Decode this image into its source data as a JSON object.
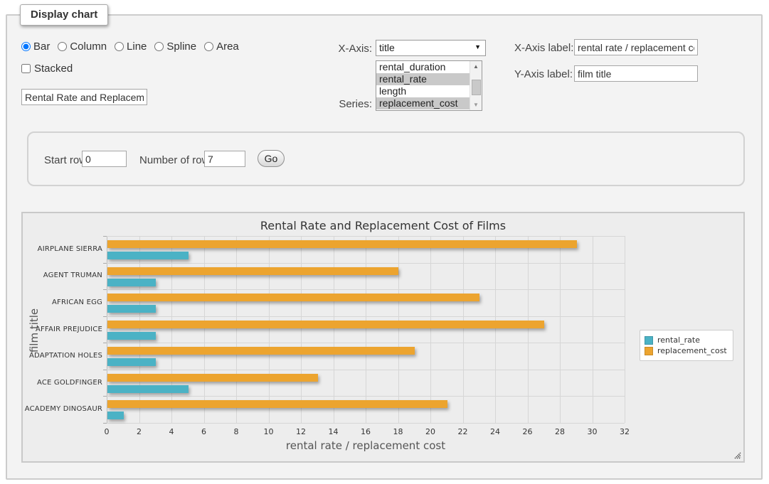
{
  "panel": {
    "legend": "Display chart"
  },
  "controls": {
    "chart_type_options": [
      {
        "label": "Bar",
        "selected": true
      },
      {
        "label": "Column",
        "selected": false
      },
      {
        "label": "Line",
        "selected": false
      },
      {
        "label": "Spline",
        "selected": false
      },
      {
        "label": "Area",
        "selected": false
      }
    ],
    "stacked": {
      "label": "Stacked",
      "checked": false
    },
    "title_input": {
      "value": "Rental Rate and Replacement Cost of Films"
    },
    "x_axis": {
      "label": "X-Axis:",
      "selected": "title"
    },
    "series_select": {
      "label": "Series:",
      "options": [
        {
          "label": "rental_duration",
          "selected": false
        },
        {
          "label": "rental_rate",
          "selected": true
        },
        {
          "label": "length",
          "selected": false
        },
        {
          "label": "replacement_cost",
          "selected": true
        }
      ]
    },
    "x_axis_label": {
      "label": "X-Axis label:",
      "value": "rental rate / replacement cost"
    },
    "y_axis_label": {
      "label": "Y-Axis label:",
      "value": "film title"
    }
  },
  "rows_panel": {
    "start_row": {
      "label": "Start row:",
      "value": "0"
    },
    "num_rows": {
      "label": "Number of rows:",
      "value": "7"
    },
    "go_label": "Go"
  },
  "chart_data": {
    "type": "bar",
    "title": "Rental Rate and Replacement Cost of Films",
    "xlabel": "rental rate / replacement cost",
    "ylabel": "film title",
    "categories": [
      "AIRPLANE SIERRA",
      "AGENT TRUMAN",
      "AFRICAN EGG",
      "AFFAIR PREJUDICE",
      "ADAPTATION HOLES",
      "ACE GOLDFINGER",
      "ACADEMY DINOSAUR"
    ],
    "series": [
      {
        "name": "rental_rate",
        "color": "#4BB2C5",
        "values": [
          4.99,
          2.99,
          2.99,
          2.99,
          2.99,
          4.99,
          0.99
        ]
      },
      {
        "name": "replacement_cost",
        "color": "#ECA42F",
        "values": [
          28.99,
          17.99,
          22.99,
          26.99,
          18.99,
          12.99,
          20.99
        ]
      }
    ],
    "xlim": [
      0,
      32
    ],
    "x_tick_step": 2,
    "grid": true,
    "legend_position": "right",
    "plot_background": "#ededed"
  }
}
